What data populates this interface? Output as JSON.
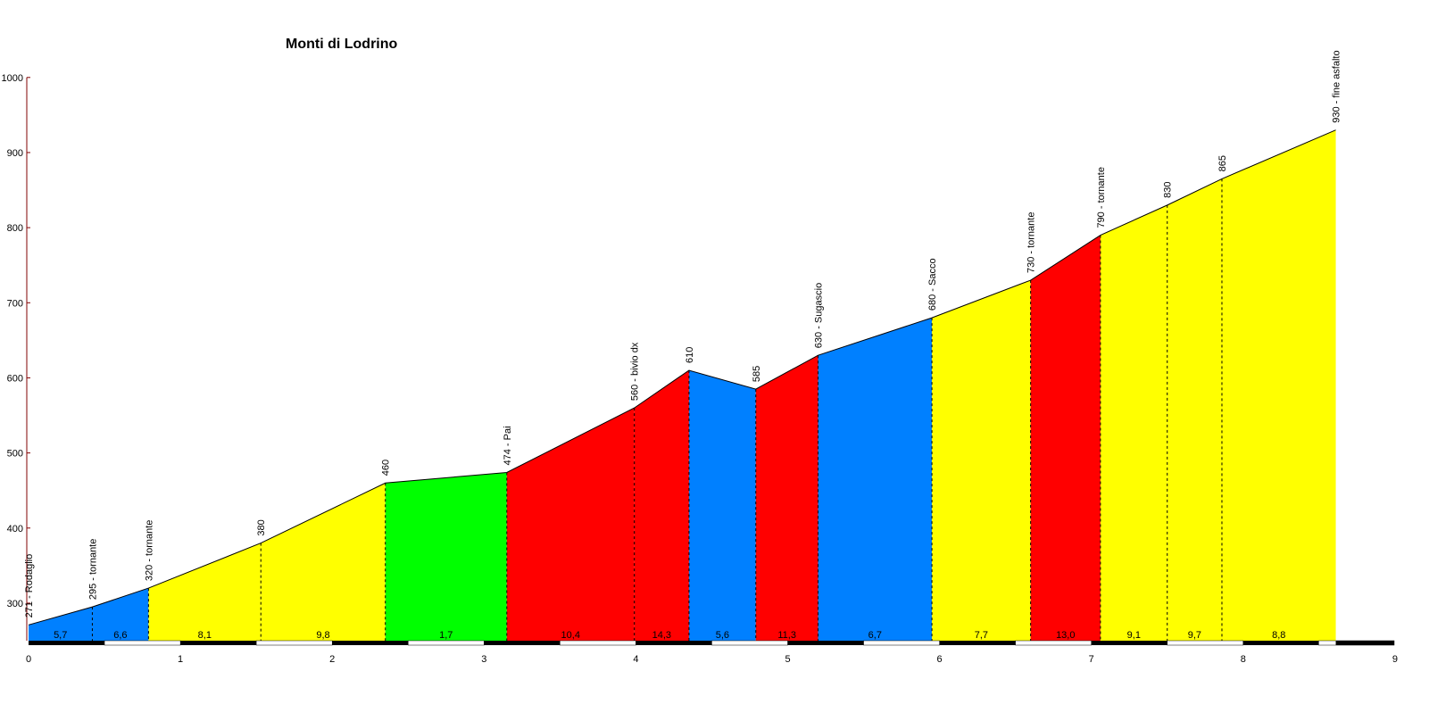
{
  "chart_data": {
    "type": "area",
    "title": "Monti di Lodrino",
    "xlabel": "",
    "ylabel": "",
    "xlim": [
      0,
      9
    ],
    "ylim": [
      250,
      1000
    ],
    "x_ticks": [
      "0",
      "1",
      "2",
      "3",
      "4",
      "5",
      "6",
      "7",
      "8",
      "9"
    ],
    "y_ticks": [
      "300",
      "400",
      "500",
      "600",
      "700",
      "800",
      "900",
      "1000"
    ],
    "points": [
      {
        "x": 0.0,
        "y": 271,
        "label": "271 - Rodaglio"
      },
      {
        "x": 0.42,
        "y": 295,
        "label": "295 - tornante"
      },
      {
        "x": 0.79,
        "y": 320,
        "label": "320 - tornante"
      },
      {
        "x": 1.53,
        "y": 380,
        "label": "380"
      },
      {
        "x": 2.35,
        "y": 460,
        "label": "460"
      },
      {
        "x": 3.15,
        "y": 474,
        "label": "474 - Pai"
      },
      {
        "x": 3.99,
        "y": 560,
        "label": "560 - bivio dx"
      },
      {
        "x": 4.35,
        "y": 610,
        "label": "610"
      },
      {
        "x": 4.79,
        "y": 585,
        "label": "585"
      },
      {
        "x": 5.2,
        "y": 630,
        "label": "630 - Sugascio"
      },
      {
        "x": 5.95,
        "y": 680,
        "label": "680 - Sacco"
      },
      {
        "x": 6.6,
        "y": 730,
        "label": "730 - tornante"
      },
      {
        "x": 7.06,
        "y": 790,
        "label": "790 - tornante"
      },
      {
        "x": 7.5,
        "y": 830,
        "label": "830"
      },
      {
        "x": 7.86,
        "y": 865,
        "label": "865"
      },
      {
        "x": 8.61,
        "y": 930,
        "label": "930 - fine asfalto"
      }
    ],
    "segments": [
      {
        "gradient": "5,7",
        "color": "#0080ff"
      },
      {
        "gradient": "6,6",
        "color": "#0080ff"
      },
      {
        "gradient": "8,1",
        "color": "#ffff00"
      },
      {
        "gradient": "9,8",
        "color": "#ffff00"
      },
      {
        "gradient": "1,7",
        "color": "#00ff00"
      },
      {
        "gradient": "10,4",
        "color": "#ff0000"
      },
      {
        "gradient": "14,3",
        "color": "#ff0000"
      },
      {
        "gradient": "5,6",
        "color": "#0080ff"
      },
      {
        "gradient": "11,3",
        "color": "#ff0000"
      },
      {
        "gradient": "6,7",
        "color": "#0080ff"
      },
      {
        "gradient": "7,7",
        "color": "#ffff00"
      },
      {
        "gradient": "13,0",
        "color": "#ff0000"
      },
      {
        "gradient": "9,1",
        "color": "#ffff00"
      },
      {
        "gradient": "9,7",
        "color": "#ffff00"
      },
      {
        "gradient": "8,8",
        "color": "#ffff00"
      }
    ],
    "grid": false,
    "legend": "none"
  }
}
